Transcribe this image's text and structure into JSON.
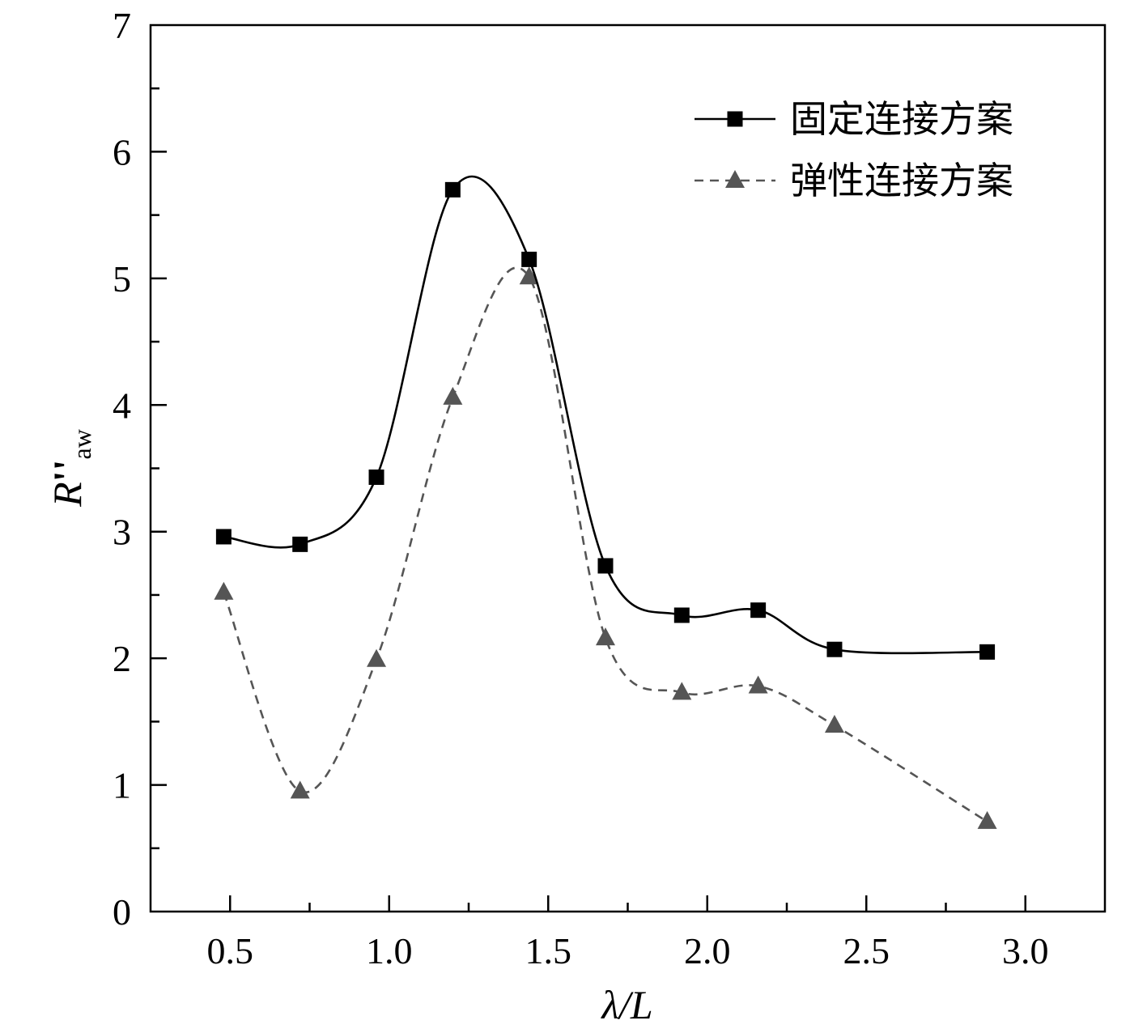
{
  "chart_data": {
    "type": "line",
    "xlabel": {
      "main": "λ/",
      "italic_part": "L"
    },
    "ylabel": {
      "main": "R",
      "prime": "''",
      "sub": "aw"
    },
    "xlim": [
      0.25,
      3.25
    ],
    "ylim": [
      0,
      7
    ],
    "xticks": [
      0.5,
      1.0,
      1.5,
      2.0,
      2.5,
      3.0
    ],
    "xtick_labels": [
      "0.5",
      "1.0",
      "1.5",
      "2.0",
      "2.5",
      "3.0"
    ],
    "yticks": [
      0,
      1,
      2,
      3,
      4,
      5,
      6,
      7
    ],
    "ytick_labels": [
      "0",
      "1",
      "2",
      "3",
      "4",
      "5",
      "6",
      "7"
    ],
    "x_minor_step": 0.25,
    "y_minor_step": 0.5,
    "grid": false,
    "legend_position": "top-right",
    "series": [
      {
        "name": "固定连接方案",
        "marker": "square",
        "line_style": "solid",
        "color": "#000000",
        "x": [
          0.48,
          0.72,
          0.96,
          1.2,
          1.44,
          1.68,
          1.92,
          2.16,
          2.4,
          2.88
        ],
        "y": [
          2.96,
          2.9,
          3.43,
          5.7,
          5.15,
          2.73,
          2.34,
          2.38,
          2.07,
          2.05
        ]
      },
      {
        "name": "弹性连接方案",
        "marker": "triangle",
        "line_style": "dashed",
        "color": "#555555",
        "x": [
          0.48,
          0.72,
          0.96,
          1.2,
          1.44,
          1.68,
          1.92,
          2.16,
          2.4,
          2.88
        ],
        "y": [
          2.52,
          0.95,
          1.99,
          4.06,
          5.01,
          2.16,
          1.73,
          1.78,
          1.47,
          0.71
        ]
      }
    ]
  }
}
